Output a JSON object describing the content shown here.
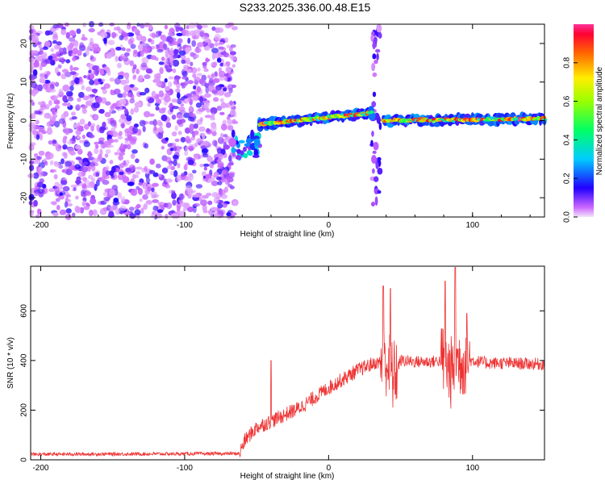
{
  "chart_data": [
    {
      "type": "heatmap",
      "title": "S233.2025.336.00.48.E15",
      "xlabel": "Height of straight line (km)",
      "ylabel": "Frequency (Hz)",
      "xlim": [
        -207,
        150
      ],
      "ylim": [
        -25,
        25
      ],
      "xticks": [
        -200,
        -100,
        0,
        100
      ],
      "yticks": [
        -20,
        -10,
        0,
        10,
        20
      ],
      "colorbar": {
        "label": "Normalized spectral amplitude",
        "range": [
          0,
          1
        ],
        "ticks": [
          0.0,
          0.2,
          0.4,
          0.6,
          0.8
        ]
      },
      "regions": [
        {
          "name": "scattered noise",
          "x_range": [
            -207,
            -65
          ],
          "f_range": [
            -25,
            25
          ],
          "amplitude": "low"
        },
        {
          "name": "onset blobs",
          "x_range": [
            -67,
            -47
          ],
          "f_range": [
            -10,
            -3
          ],
          "amplitude": "medium"
        },
        {
          "name": "track segment 1",
          "x_range": [
            -48,
            30
          ],
          "f_start": -1,
          "f_end": 2,
          "amplitude": "high"
        },
        {
          "name": "vertical streak",
          "x_range": [
            30,
            36
          ],
          "f_range": [
            -22,
            24
          ],
          "amplitude": "low"
        },
        {
          "name": "track segment 2",
          "x_range": [
            38,
            150
          ],
          "f_start": 0,
          "f_end": 0.5,
          "amplitude": "high"
        }
      ]
    },
    {
      "type": "line",
      "xlabel": "Height of straight line (km)",
      "ylabel": "SNR (10 * v/v)",
      "xlim": [
        -207,
        150
      ],
      "ylim": [
        0,
        780
      ],
      "xticks": [
        -200,
        -100,
        0,
        100
      ],
      "yticks": [
        0,
        200,
        400,
        600
      ],
      "series": [
        {
          "name": "SNR",
          "color": "#ee3333",
          "envelope_x": [
            -207,
            -62,
            -58,
            -50,
            -40,
            -20,
            0,
            20,
            30,
            40,
            45,
            50,
            60,
            70,
            80,
            85,
            90,
            95,
            100,
            110,
            120,
            150
          ],
          "envelope_y": [
            22,
            25,
            80,
            130,
            155,
            210,
            290,
            360,
            385,
            400,
            330,
            400,
            395,
            395,
            400,
            350,
            400,
            400,
            400,
            390,
            390,
            385
          ],
          "noise_amplitude": 60,
          "spikes": [
            {
              "x": -40,
              "y": 400
            },
            {
              "x": 38,
              "y": 700
            },
            {
              "x": 43,
              "y": 690
            },
            {
              "x": 88,
              "y": 775
            },
            {
              "x": 81,
              "y": 720
            },
            {
              "x": 96,
              "y": 590
            }
          ]
        }
      ]
    }
  ]
}
